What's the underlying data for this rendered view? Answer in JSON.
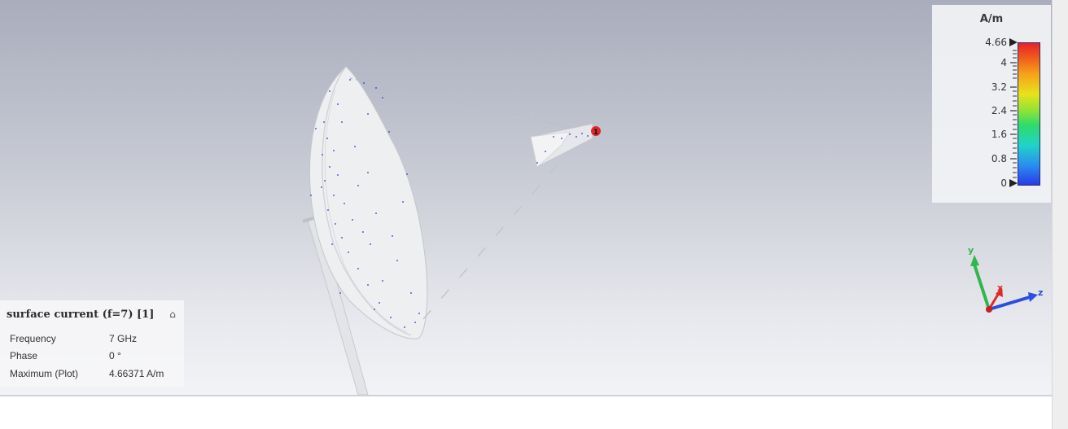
{
  "legend": {
    "unit": "A/m",
    "ticks": [
      "4.66",
      "4",
      "3.2",
      "2.4",
      "1.6",
      "0.8",
      "0"
    ]
  },
  "info_panel": {
    "title": "surface current (f=7) [1]",
    "rows": [
      {
        "key": "Frequency",
        "value": "7 GHz"
      },
      {
        "key": "Phase",
        "value": "0 °"
      },
      {
        "key": "Maximum (Plot)",
        "value": "4.66371 A/m"
      }
    ]
  },
  "axes": {
    "x": "x",
    "y": "y",
    "z": "z"
  },
  "port_label": "1",
  "colors": {
    "x_axis": "#e0282a",
    "y_axis": "#2eb84a",
    "z_axis": "#2a4fe0",
    "port": "#e0282a"
  }
}
